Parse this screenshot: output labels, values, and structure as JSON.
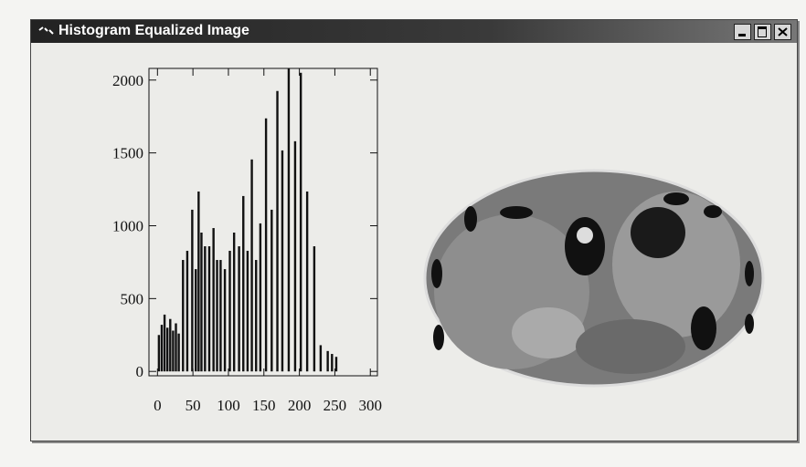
{
  "window": {
    "title": "Histogram Equalized Image"
  },
  "chart_data": {
    "type": "bar",
    "color": "#111111",
    "x": [
      2,
      6,
      10,
      14,
      18,
      22,
      26,
      30,
      36,
      42,
      49,
      54,
      58,
      62,
      67,
      73,
      79,
      84,
      89,
      95,
      102,
      108,
      115,
      121,
      127,
      133,
      139,
      145,
      153,
      161,
      169,
      176,
      185,
      194,
      202,
      211,
      221,
      230,
      240,
      246,
      252
    ],
    "values": [
      250,
      320,
      390,
      300,
      360,
      280,
      330,
      260,
      765,
      828,
      1110,
      702,
      1235,
      953,
      859,
      859,
      984,
      765,
      765,
      702,
      828,
      953,
      859,
      1204,
      828,
      1455,
      765,
      1016,
      1737,
      1110,
      1925,
      1517,
      2080,
      1580,
      2050,
      1235,
      859,
      180,
      140,
      120,
      100
    ],
    "xlim": [
      -12,
      310
    ],
    "ylim": [
      -30,
      2080
    ],
    "xticks": [
      0,
      50,
      100,
      150,
      200,
      250,
      300
    ],
    "yticks": [
      0,
      500,
      1000,
      1500,
      2000
    ]
  }
}
